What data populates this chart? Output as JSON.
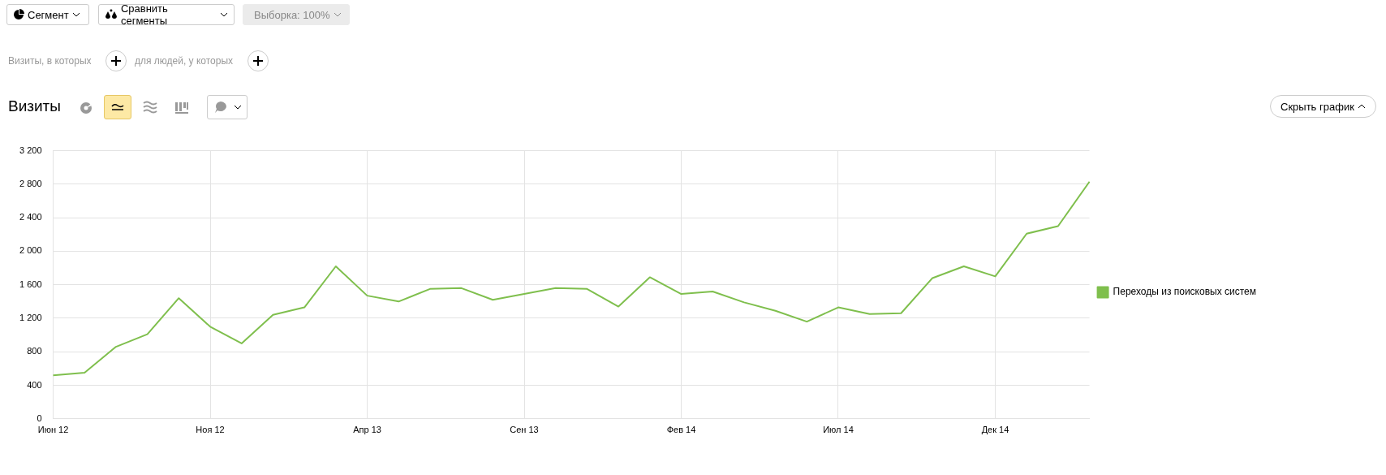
{
  "chart_data": {
    "type": "line",
    "title": "Визиты",
    "annotations": [
      "Сегмент",
      "Сравнить сегменты",
      "Выборка: 100%",
      "Визиты, в которых",
      "для людей, у которых",
      "Скрыть график"
    ],
    "categories": [
      "Июн 12",
      null,
      null,
      null,
      null,
      "Ноя 12",
      null,
      null,
      null,
      null,
      "Апр 13",
      null,
      null,
      null,
      null,
      "Сен 13",
      null,
      null,
      null,
      null,
      "Фев 14",
      null,
      null,
      null,
      null,
      "Июл 14",
      null,
      null,
      null,
      null,
      "Дек 14",
      null,
      null,
      null
    ],
    "series": [
      {
        "name": "Переходы из поисковых систем",
        "color": "#7fbf4d",
        "values": [
          520,
          550,
          860,
          1010,
          1440,
          1100,
          900,
          1240,
          1330,
          1820,
          1470,
          1400,
          1550,
          1560,
          1420,
          1490,
          1560,
          1550,
          1340,
          1690,
          1490,
          1520,
          1390,
          1290,
          1160,
          1330,
          1250,
          1260,
          1680,
          1820,
          1700,
          2210,
          2300,
          2830
        ]
      }
    ],
    "ylim": [
      0,
      3200
    ],
    "yticks": [
      0,
      400,
      800,
      {
        "value": 1200,
        "label": "1 200"
      },
      {
        "value": 1600,
        "label": "1 600"
      },
      {
        "value": 2000,
        "label": "2 000"
      },
      {
        "value": 2400,
        "label": "2 400"
      },
      {
        "value": 2800,
        "label": "2 800"
      },
      {
        "value": 3200,
        "label": "3 200"
      }
    ],
    "grid": true,
    "legend": "right",
    "marker": "none",
    "line_style": "solid"
  }
}
